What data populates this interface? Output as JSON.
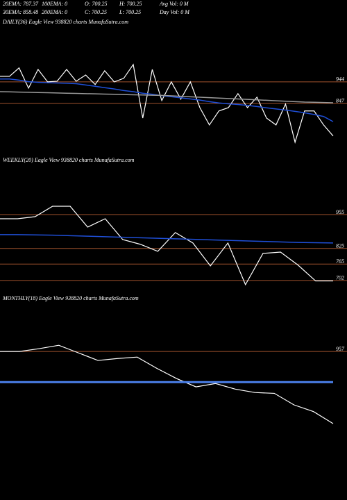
{
  "header": {
    "rows": [
      [
        "20EMA: 787.37",
        "100EMA: 0",
        "O: 700.25",
        "H: 700.25",
        "Avg Vol: 0  M"
      ],
      [
        "30EMA: 858.48",
        "200EMA: 0",
        "C: 700.25",
        "L: 700.25",
        "Day Vol: 0  M"
      ]
    ]
  },
  "chart_data": [
    {
      "type": "line",
      "title": "DAILY(36) Eagle  View  938820  charts MunafaSutra.com",
      "ylim": [
        562,
        1219
      ],
      "yticks": [
        944,
        847
      ],
      "level_color": "#a0522d",
      "series": [
        {
          "color": "#ffffff",
          "values": [
            969,
            969,
            1007,
            916,
            1000,
            944,
            947,
            1000,
            947,
            975,
            932,
            994,
            944,
            960,
            1022,
            781,
            1000,
            860,
            944,
            866,
            944,
            828,
            750,
            813,
            828,
            891,
            828,
            875,
            781,
            750,
            844,
            672,
            813,
            813,
            750,
            700.25
          ]
        },
        {
          "color": "#1f4fd8",
          "values": [
            957,
            957,
            952,
            945,
            942,
            940,
            939,
            938,
            936,
            930,
            924,
            918,
            912,
            905,
            900,
            893,
            888,
            882,
            877,
            872,
            867,
            862,
            855,
            849,
            845,
            842,
            838,
            833,
            827,
            822,
            817,
            811,
            805,
            797,
            788,
            765
          ]
        },
        {
          "color": "#9a9a9a",
          "values": [
            900,
            899,
            898,
            897,
            896,
            895,
            894,
            893,
            892,
            891,
            890,
            889,
            888,
            887,
            886,
            885,
            884,
            883,
            881,
            879,
            877,
            875,
            873,
            871,
            869,
            867,
            865,
            863,
            861,
            859,
            857,
            855,
            853,
            852,
            851,
            850
          ]
        }
      ]
    },
    {
      "type": "line",
      "title": "WEEKLY(20) Eagle  View  938820  charts MunafaSutra.com",
      "ylim": [
        659,
        1139
      ],
      "yticks": [
        955,
        825,
        765,
        702
      ],
      "level_color": "#a0522d",
      "series": [
        {
          "color": "#ffffff",
          "values": [
            939,
            939,
            947,
            987,
            987,
            907,
            939,
            859,
            841,
            814,
            886,
            846,
            758,
            846,
            686,
            806,
            811,
            761,
            700.25,
            700.25
          ]
        },
        {
          "color": "#1f4fd8",
          "values": [
            878,
            878,
            877,
            876,
            874,
            872,
            870,
            868,
            866,
            864,
            862,
            860,
            858,
            856,
            854,
            852,
            850,
            848,
            847,
            846
          ]
        }
      ]
    },
    {
      "type": "line",
      "title": "MONTHLY(18) Eagle  View  938820  charts MunafaSutra.com",
      "ylim": [
        478,
        1145
      ],
      "yticks": [
        957
      ],
      "level_color": "#a0522d",
      "series": [
        {
          "color": "#ffffff",
          "values": [
            957,
            957,
            967,
            979,
            952,
            925,
            932,
            937,
            897,
            861,
            831,
            843,
            823,
            811,
            808,
            767,
            743,
            700.25
          ]
        },
        {
          "color": "#4a7fe8",
          "values": [
            848,
            848,
            848,
            848,
            848,
            848,
            848,
            848,
            848,
            848,
            848,
            848,
            848,
            848,
            848,
            848,
            848,
            848
          ]
        }
      ]
    }
  ]
}
